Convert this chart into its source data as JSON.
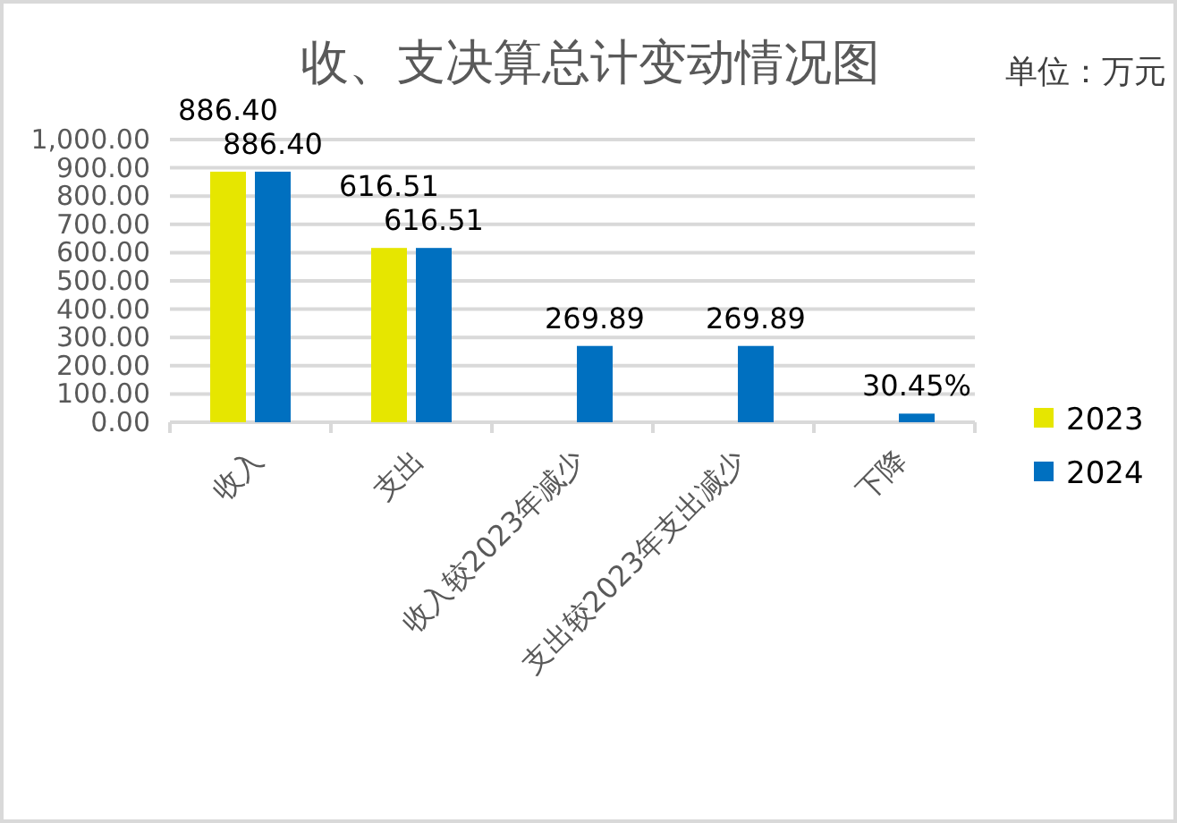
{
  "chart_data": {
    "type": "bar",
    "title": "收、支决算总计变动情况图",
    "annotations": [
      "单位：万元"
    ],
    "categories": [
      "收入",
      "支出",
      "收入较2023年减少",
      "支出较2023年支出减少",
      "下降"
    ],
    "series": [
      {
        "name": "2023",
        "color": "#e6e600",
        "values": [
          886.4,
          616.51,
          null,
          null,
          null
        ],
        "value_labels": [
          "886.40",
          "616.51",
          null,
          null,
          null
        ]
      },
      {
        "name": "2024",
        "color": "#0070c0",
        "values": [
          886.4,
          616.51,
          269.89,
          269.89,
          30.45
        ],
        "value_labels": [
          "886.40",
          "616.51",
          "269.89",
          "269.89",
          "30.45%"
        ]
      }
    ],
    "ylim": [
      0,
      1000
    ],
    "yticks": [
      {
        "value": 0,
        "label": "0.00"
      },
      {
        "value": 100,
        "label": "100.00"
      },
      {
        "value": 200,
        "label": "200.00"
      },
      {
        "value": 300,
        "label": "300.00"
      },
      {
        "value": 400,
        "label": "400.00"
      },
      {
        "value": 500,
        "label": "500.00"
      },
      {
        "value": 600,
        "label": "600.00"
      },
      {
        "value": 700,
        "label": "700.00"
      },
      {
        "value": 800,
        "label": "800.00"
      },
      {
        "value": 900,
        "label": "900.00"
      },
      {
        "value": 1000,
        "label": "1,000.00"
      }
    ],
    "grid": "y",
    "legend": "right"
  }
}
